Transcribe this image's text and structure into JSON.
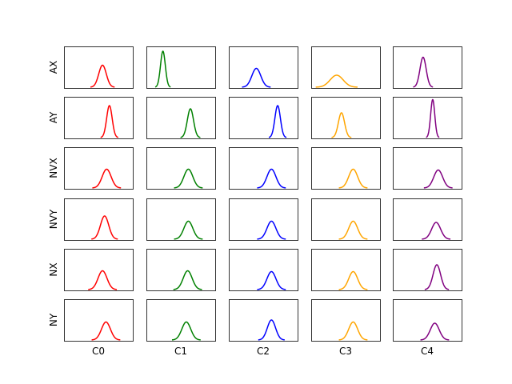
{
  "chart_data": {
    "type": "line",
    "grid": false,
    "row_labels": [
      "AX",
      "AY",
      "NVX",
      "NVY",
      "NX",
      "NY"
    ],
    "col_labels": [
      "C0",
      "C1",
      "C2",
      "C3",
      "C4"
    ],
    "col_colors": [
      "#ff0000",
      "#008000",
      "#0000ff",
      "#ffa500",
      "#800080"
    ],
    "x_range": [
      0,
      1
    ],
    "panels": [
      [
        {
          "mu": 0.56,
          "sigma": 0.055,
          "amp": 0.55
        },
        {
          "mu": 0.24,
          "sigma": 0.035,
          "amp": 0.9
        },
        {
          "mu": 0.4,
          "sigma": 0.065,
          "amp": 0.47
        },
        {
          "mu": 0.37,
          "sigma": 0.095,
          "amp": 0.3
        },
        {
          "mu": 0.44,
          "sigma": 0.045,
          "amp": 0.75
        }
      ],
      [
        {
          "mu": 0.66,
          "sigma": 0.04,
          "amp": 0.8
        },
        {
          "mu": 0.64,
          "sigma": 0.045,
          "amp": 0.72
        },
        {
          "mu": 0.71,
          "sigma": 0.04,
          "amp": 0.8
        },
        {
          "mu": 0.44,
          "sigma": 0.045,
          "amp": 0.62
        },
        {
          "mu": 0.58,
          "sigma": 0.03,
          "amp": 0.95
        }
      ],
      [
        {
          "mu": 0.62,
          "sigma": 0.065,
          "amp": 0.47
        },
        {
          "mu": 0.61,
          "sigma": 0.065,
          "amp": 0.47
        },
        {
          "mu": 0.62,
          "sigma": 0.065,
          "amp": 0.47
        },
        {
          "mu": 0.61,
          "sigma": 0.065,
          "amp": 0.47
        },
        {
          "mu": 0.66,
          "sigma": 0.065,
          "amp": 0.45
        }
      ],
      [
        {
          "mu": 0.59,
          "sigma": 0.06,
          "amp": 0.58
        },
        {
          "mu": 0.61,
          "sigma": 0.065,
          "amp": 0.45
        },
        {
          "mu": 0.62,
          "sigma": 0.065,
          "amp": 0.45
        },
        {
          "mu": 0.61,
          "sigma": 0.065,
          "amp": 0.45
        },
        {
          "mu": 0.63,
          "sigma": 0.065,
          "amp": 0.42
        }
      ],
      [
        {
          "mu": 0.56,
          "sigma": 0.065,
          "amp": 0.47
        },
        {
          "mu": 0.6,
          "sigma": 0.065,
          "amp": 0.47
        },
        {
          "mu": 0.62,
          "sigma": 0.065,
          "amp": 0.45
        },
        {
          "mu": 0.61,
          "sigma": 0.065,
          "amp": 0.45
        },
        {
          "mu": 0.64,
          "sigma": 0.055,
          "amp": 0.62
        }
      ],
      [
        {
          "mu": 0.61,
          "sigma": 0.065,
          "amp": 0.45
        },
        {
          "mu": 0.58,
          "sigma": 0.065,
          "amp": 0.45
        },
        {
          "mu": 0.62,
          "sigma": 0.06,
          "amp": 0.5
        },
        {
          "mu": 0.61,
          "sigma": 0.065,
          "amp": 0.45
        },
        {
          "mu": 0.61,
          "sigma": 0.065,
          "amp": 0.42
        }
      ]
    ]
  }
}
